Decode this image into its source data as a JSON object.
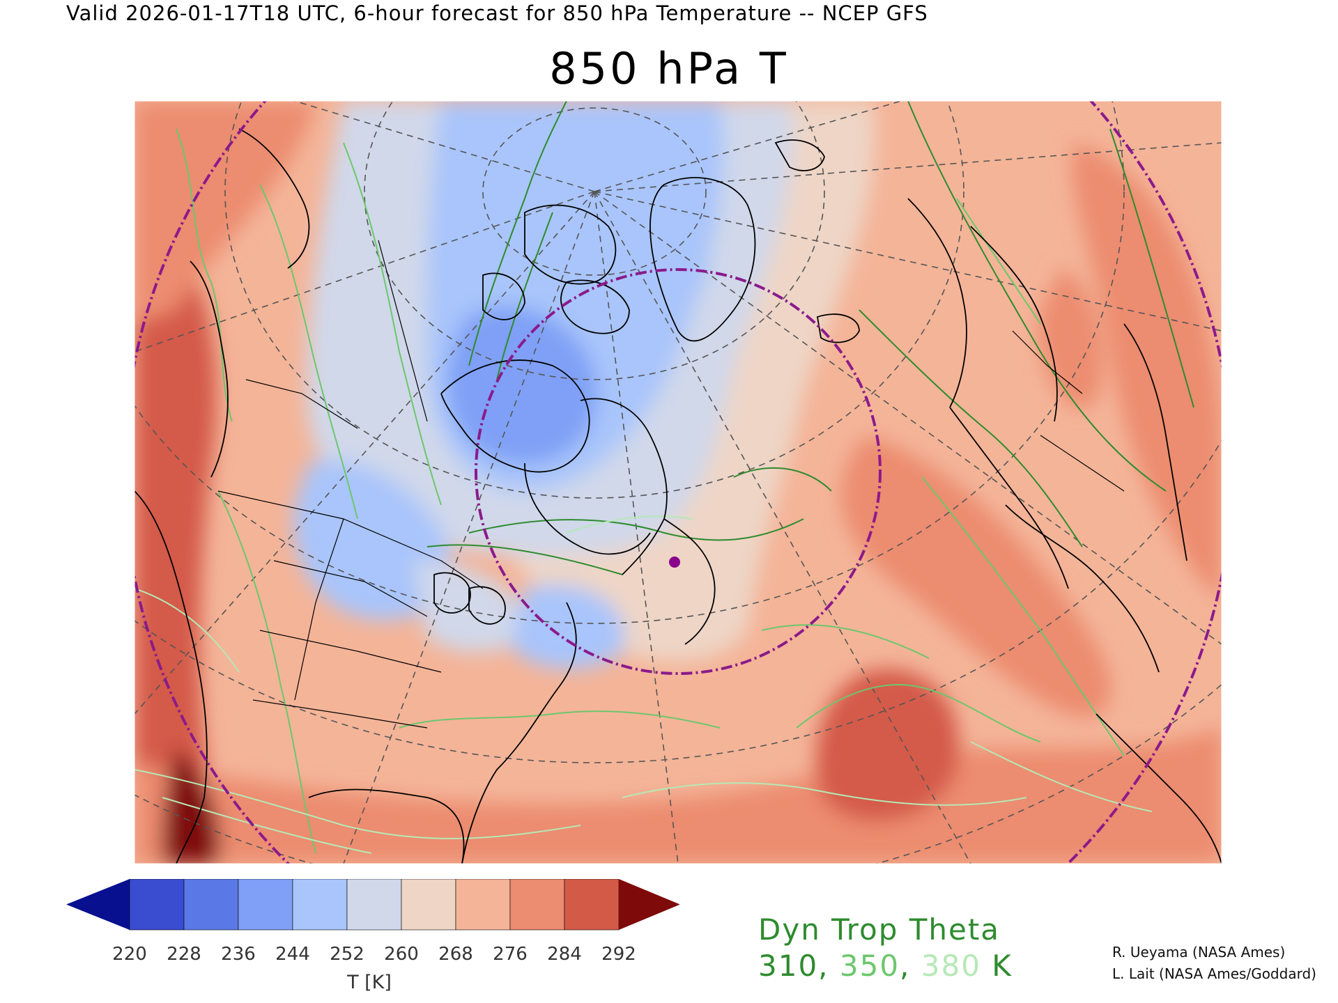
{
  "header": {
    "valid_line": "Valid 2026-01-17T18 UTC, 6-hour forecast for 850 hPa Temperature -- NCEP GFS"
  },
  "title": "850 hPa T",
  "colorbar": {
    "ticks": [
      "220",
      "228",
      "236",
      "244",
      "252",
      "260",
      "268",
      "276",
      "284",
      "292"
    ],
    "colors": [
      "#3a4ccf",
      "#5b79e6",
      "#7fa0f6",
      "#a9c5fb",
      "#d0d8ea",
      "#eed5c6",
      "#f4b498",
      "#ec8c70",
      "#d45a48"
    ],
    "under_color": "#08108f",
    "over_color": "#7f0a0a",
    "label": "T [K]"
  },
  "legend": {
    "title": "Dyn Trop Theta",
    "values": [
      {
        "text": "310",
        "color": "#2e8b2e"
      },
      {
        "text": "350",
        "color": "#6cc76c"
      },
      {
        "text": "380",
        "color": "#b6e8b6"
      }
    ],
    "separator": ", ",
    "unit": " K",
    "unit_color": "#2e8b2e"
  },
  "credits": [
    "R. Ueyama (NASA Ames)",
    "L. Lait (NASA Ames/Goddard)"
  ],
  "map": {
    "projection": "polar stereographic, North Pole",
    "colors": {
      "outer_ring": "#8b1a8b",
      "inner_ring": "#8b1a8b",
      "marker": "#8b008b",
      "coastline": "#000000",
      "graticule": "#555555",
      "contour_310": "#2e8b2e",
      "contour_350": "#6cc76c",
      "contour_380": "#b6e8b6"
    }
  }
}
